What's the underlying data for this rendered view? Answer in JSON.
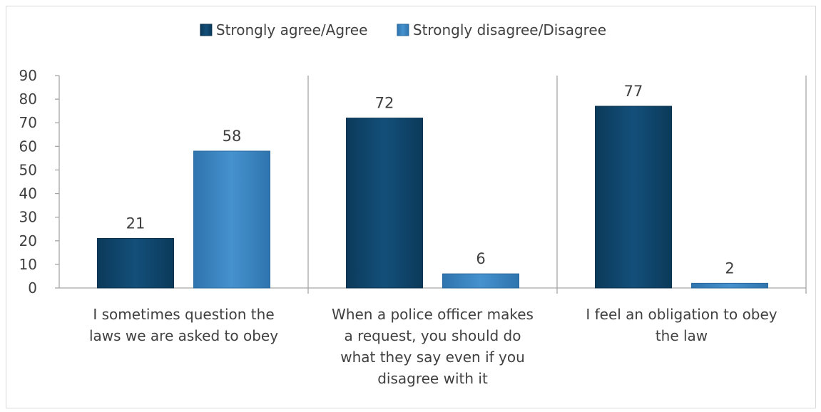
{
  "chart_data": {
    "type": "bar",
    "categories": [
      [
        "I sometimes question the",
        "laws we are asked to obey"
      ],
      [
        "When a police officer makes",
        "a request, you should do",
        "what they say even if you",
        "disagree with it"
      ],
      [
        "I feel an obligation to obey",
        "the law"
      ]
    ],
    "series": [
      {
        "name": "Strongly agree/Agree",
        "values": [
          21,
          72,
          77
        ],
        "color": "#0e4a72"
      },
      {
        "name": "Strongly disagree/Disagree",
        "values": [
          58,
          6,
          2
        ],
        "color": "#3a86c4"
      }
    ],
    "ylim": [
      0,
      90
    ],
    "yticks": [
      0,
      10,
      20,
      30,
      40,
      50,
      60,
      70,
      80,
      90
    ],
    "data_labels": true,
    "legend_position": "top",
    "grid": false
  }
}
